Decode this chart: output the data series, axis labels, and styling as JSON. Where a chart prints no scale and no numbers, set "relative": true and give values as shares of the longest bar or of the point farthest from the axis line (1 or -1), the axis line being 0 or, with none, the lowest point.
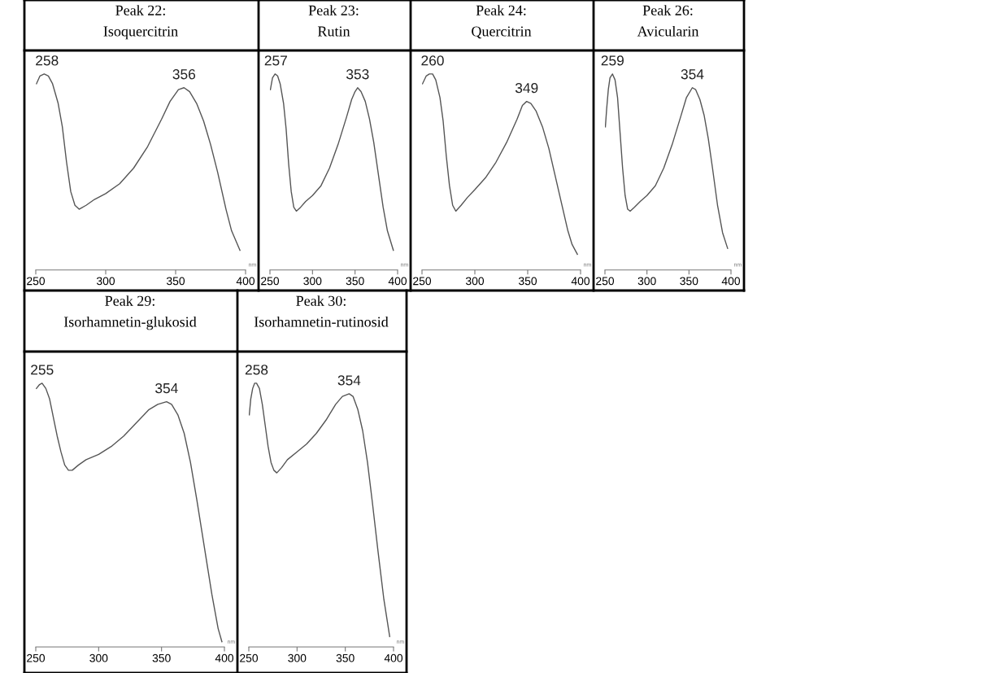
{
  "chart_data": [
    {
      "type": "line",
      "title": "Peak 22:\nIsoquercitrin",
      "xlabel": "nm",
      "relative": true,
      "xlim": [
        250,
        400
      ],
      "xticks": [
        250,
        300,
        350,
        400
      ],
      "grid": false,
      "legend": false,
      "marker": "none",
      "line_style": "solid",
      "series": [
        {
          "color": "#555555",
          "x": [
            250.5,
            253,
            256,
            259,
            262,
            266,
            269,
            272,
            275,
            278,
            281,
            286,
            292,
            300,
            310,
            320,
            330,
            340,
            346,
            352,
            356,
            360,
            365,
            370,
            375,
            380,
            386,
            390,
            396
          ],
          "values": [
            0.95,
            0.99,
            1.0,
            0.99,
            0.95,
            0.85,
            0.73,
            0.55,
            0.4,
            0.33,
            0.31,
            0.33,
            0.36,
            0.39,
            0.44,
            0.52,
            0.63,
            0.77,
            0.86,
            0.92,
            0.93,
            0.91,
            0.85,
            0.76,
            0.64,
            0.5,
            0.31,
            0.2,
            0.1
          ]
        }
      ],
      "annotations": [
        {
          "text": "258",
          "x": 258,
          "y": 1.0
        },
        {
          "text": "356",
          "x": 356,
          "y": 0.93
        }
      ]
    },
    {
      "type": "line",
      "title": "Peak 23:\nRutin",
      "xlabel": "nm",
      "relative": true,
      "xlim": [
        250,
        400
      ],
      "xticks": [
        250,
        300,
        350,
        400
      ],
      "grid": false,
      "legend": false,
      "marker": "none",
      "line_style": "solid",
      "series": [
        {
          "color": "#555555",
          "x": [
            250.5,
            253,
            256,
            259,
            262,
            266,
            269,
            272,
            275,
            278,
            281,
            286,
            292,
            300,
            310,
            320,
            330,
            340,
            346,
            350,
            353,
            357,
            362,
            367,
            372,
            377,
            383,
            388,
            395
          ],
          "values": [
            0.92,
            0.98,
            1.0,
            0.99,
            0.95,
            0.85,
            0.72,
            0.54,
            0.4,
            0.32,
            0.3,
            0.32,
            0.35,
            0.38,
            0.43,
            0.52,
            0.64,
            0.78,
            0.87,
            0.91,
            0.93,
            0.91,
            0.86,
            0.77,
            0.65,
            0.5,
            0.32,
            0.2,
            0.1
          ]
        }
      ],
      "annotations": [
        {
          "text": "257",
          "x": 257,
          "y": 1.0
        },
        {
          "text": "353",
          "x": 353,
          "y": 0.93
        }
      ]
    },
    {
      "type": "line",
      "title": "Peak 24:\nQuercitrin",
      "xlabel": "nm",
      "relative": true,
      "xlim": [
        250,
        400
      ],
      "xticks": [
        250,
        300,
        350,
        400
      ],
      "grid": false,
      "legend": false,
      "marker": "none",
      "line_style": "solid",
      "series": [
        {
          "color": "#555555",
          "x": [
            250.5,
            254,
            257,
            260,
            263,
            267,
            270,
            273,
            276,
            279,
            282,
            287,
            293,
            300,
            310,
            320,
            330,
            340,
            345,
            349,
            353,
            358,
            364,
            370,
            376,
            382,
            388,
            392,
            397
          ],
          "values": [
            0.95,
            0.99,
            1.0,
            1.0,
            0.97,
            0.88,
            0.76,
            0.58,
            0.43,
            0.33,
            0.3,
            0.33,
            0.37,
            0.41,
            0.47,
            0.55,
            0.65,
            0.77,
            0.84,
            0.86,
            0.85,
            0.81,
            0.73,
            0.62,
            0.48,
            0.34,
            0.2,
            0.13,
            0.08
          ]
        }
      ],
      "annotations": [
        {
          "text": "260",
          "x": 260,
          "y": 1.0
        },
        {
          "text": "349",
          "x": 349,
          "y": 0.86
        }
      ]
    },
    {
      "type": "line",
      "title": "Peak 26:\nAvicularin",
      "xlabel": "nm",
      "relative": true,
      "xlim": [
        250,
        400
      ],
      "xticks": [
        250,
        300,
        350,
        400
      ],
      "grid": false,
      "legend": false,
      "marker": "none",
      "line_style": "solid",
      "series": [
        {
          "color": "#555555",
          "x": [
            250.5,
            252,
            254,
            256,
            259,
            262,
            265,
            268,
            271,
            274,
            277,
            280,
            285,
            292,
            300,
            310,
            320,
            330,
            340,
            347,
            354,
            358,
            363,
            368,
            373,
            378,
            384,
            390,
            396
          ],
          "values": [
            0.73,
            0.82,
            0.92,
            0.98,
            1.0,
            0.97,
            0.88,
            0.7,
            0.52,
            0.38,
            0.31,
            0.3,
            0.32,
            0.35,
            0.38,
            0.43,
            0.52,
            0.64,
            0.78,
            0.88,
            0.93,
            0.92,
            0.87,
            0.79,
            0.67,
            0.52,
            0.33,
            0.19,
            0.11
          ]
        }
      ],
      "annotations": [
        {
          "text": "259",
          "x": 259,
          "y": 1.0
        },
        {
          "text": "354",
          "x": 354,
          "y": 0.93
        }
      ]
    },
    {
      "type": "line",
      "title": "Peak 29:\nIsorhamnetin-glukosid",
      "xlabel": "nm",
      "relative": true,
      "xlim": [
        250,
        400
      ],
      "xticks": [
        250,
        300,
        350,
        400
      ],
      "grid": false,
      "legend": false,
      "marker": "none",
      "line_style": "solid",
      "series": [
        {
          "color": "#555555",
          "x": [
            250.5,
            253,
            255,
            258,
            261,
            264,
            267,
            270,
            273,
            276,
            279,
            284,
            290,
            300,
            310,
            320,
            330,
            340,
            347,
            354,
            358,
            363,
            368,
            373,
            378,
            384,
            390,
            395,
            398
          ],
          "values": [
            0.98,
            0.995,
            1.0,
            0.98,
            0.94,
            0.87,
            0.8,
            0.74,
            0.69,
            0.67,
            0.67,
            0.69,
            0.71,
            0.73,
            0.76,
            0.8,
            0.85,
            0.9,
            0.92,
            0.93,
            0.92,
            0.88,
            0.81,
            0.7,
            0.56,
            0.38,
            0.2,
            0.07,
            0.02
          ]
        }
      ],
      "annotations": [
        {
          "text": "255",
          "x": 255,
          "y": 1.0
        },
        {
          "text": "354",
          "x": 354,
          "y": 0.93
        }
      ]
    },
    {
      "type": "line",
      "title": "Peak 30:\nIsorhamnetin-rutinosid",
      "xlabel": "nm",
      "relative": true,
      "xlim": [
        250,
        400
      ],
      "xticks": [
        250,
        300,
        350,
        400
      ],
      "grid": false,
      "legend": false,
      "marker": "none",
      "line_style": "solid",
      "series": [
        {
          "color": "#555555",
          "x": [
            250.5,
            252,
            254,
            256,
            258,
            261,
            264,
            267,
            270,
            273,
            276,
            279,
            284,
            290,
            300,
            310,
            320,
            330,
            340,
            347,
            354,
            358,
            363,
            368,
            373,
            378,
            384,
            390,
            396
          ],
          "values": [
            0.88,
            0.94,
            0.98,
            1.0,
            1.0,
            0.98,
            0.92,
            0.84,
            0.76,
            0.7,
            0.67,
            0.66,
            0.68,
            0.71,
            0.74,
            0.77,
            0.81,
            0.86,
            0.92,
            0.95,
            0.96,
            0.95,
            0.9,
            0.82,
            0.7,
            0.55,
            0.36,
            0.18,
            0.04
          ]
        }
      ],
      "annotations": [
        {
          "text": "258",
          "x": 258,
          "y": 1.0
        },
        {
          "text": "354",
          "x": 354,
          "y": 0.96
        }
      ]
    }
  ]
}
